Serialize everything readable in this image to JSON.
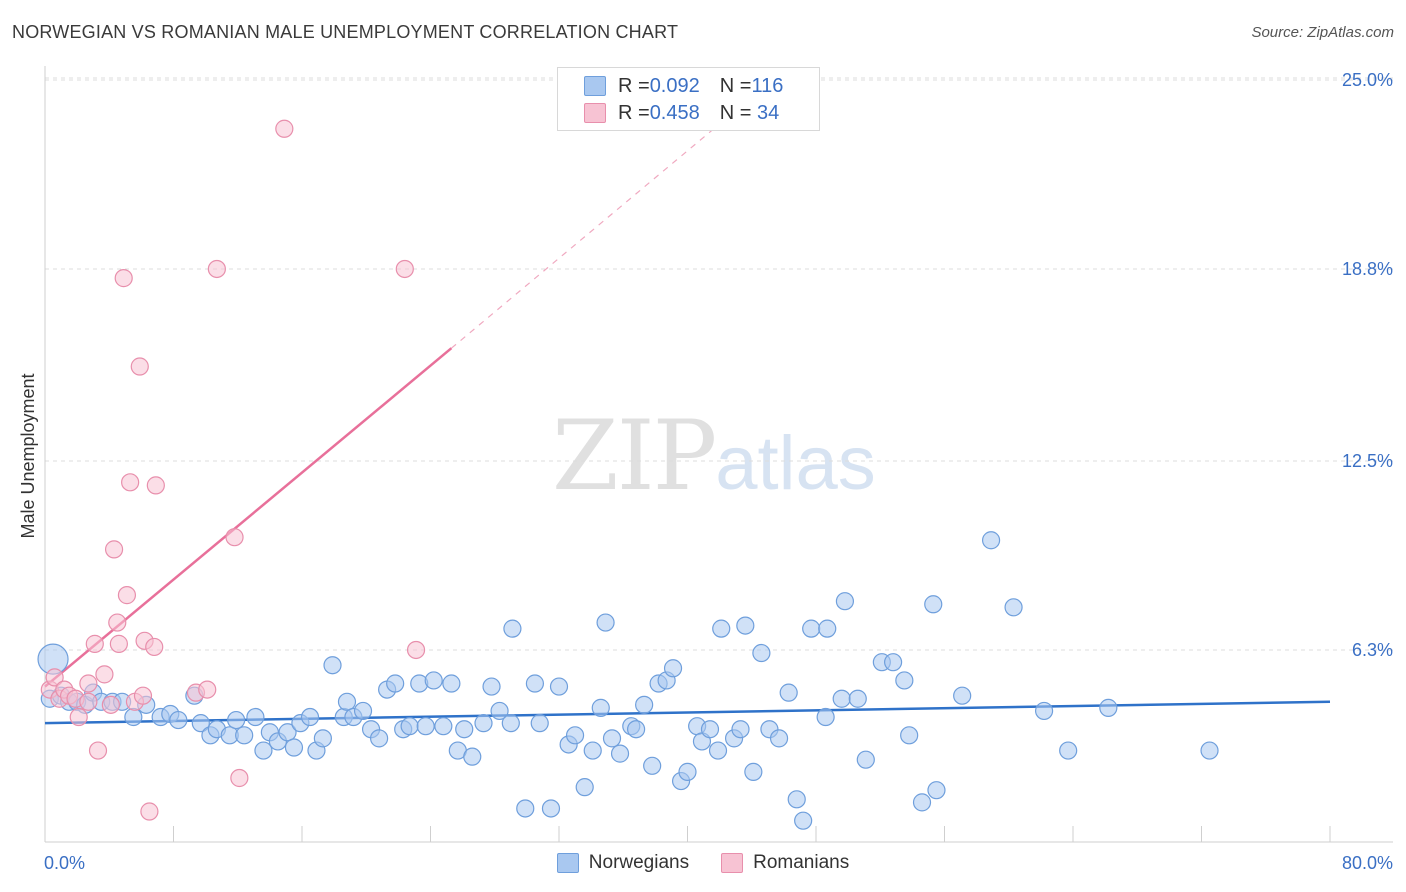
{
  "header": {
    "title": "NORWEGIAN VS ROMANIAN MALE UNEMPLOYMENT CORRELATION CHART",
    "source": "Source: ZipAtlas.com"
  },
  "watermark": {
    "zip": "ZIP",
    "atlas": "atlas"
  },
  "legend_top": [
    {
      "r_label": "R = ",
      "r_value": "0.092",
      "n_label": "N = ",
      "n_value": "116",
      "color": "#a9c8f0",
      "border": "#6f9fdc"
    },
    {
      "r_label": "R = ",
      "r_value": "0.458",
      "n_label": "N = ",
      "n_value": " 34",
      "color": "#f7c3d3",
      "border": "#e88fac"
    }
  ],
  "legend_bottom": [
    {
      "label": "Norwegians",
      "color": "#a9c8f0",
      "border": "#6f9fdc"
    },
    {
      "label": "Romanians",
      "color": "#f7c3d3",
      "border": "#e88fac"
    }
  ],
  "chart_data": {
    "type": "scatter",
    "ylabel": "Male Unemployment",
    "xlim": [
      0,
      80
    ],
    "ylim": [
      0,
      25
    ],
    "x_tick_labels": [
      "0.0%",
      "80.0%"
    ],
    "y_tick_labels": [
      "6.3%",
      "12.5%",
      "18.8%",
      "25.0%"
    ],
    "y_ticks": [
      6.3,
      12.5,
      18.8,
      25.0
    ],
    "grid": true,
    "series": [
      {
        "name": "Norwegians",
        "color": "#6f9fdc",
        "fill": "#a9c8f0",
        "trend": {
          "x0": 0,
          "y0": 3.9,
          "x1": 80,
          "y1": 4.6,
          "color": "#2f72c9"
        },
        "points": [
          [
            0.3,
            4.7
          ],
          [
            1,
            4.8
          ],
          [
            1.5,
            4.6
          ],
          [
            2,
            4.6
          ],
          [
            2.5,
            4.5
          ],
          [
            3,
            4.9
          ],
          [
            3.5,
            4.6
          ],
          [
            4.2,
            4.6
          ],
          [
            4.8,
            4.6
          ],
          [
            5.5,
            4.1
          ],
          [
            6.3,
            4.5
          ],
          [
            7.2,
            4.1
          ],
          [
            7.8,
            4.2
          ],
          [
            8.3,
            4.0
          ],
          [
            9.3,
            4.8
          ],
          [
            9.7,
            3.9
          ],
          [
            10.3,
            3.5
          ],
          [
            10.7,
            3.7
          ],
          [
            11.5,
            3.5
          ],
          [
            11.9,
            4.0
          ],
          [
            12.4,
            3.5
          ],
          [
            13.1,
            4.1
          ],
          [
            13.6,
            3.0
          ],
          [
            14,
            3.6
          ],
          [
            14.5,
            3.3
          ],
          [
            15.1,
            3.6
          ],
          [
            15.5,
            3.1
          ],
          [
            15.9,
            3.9
          ],
          [
            16.5,
            4.1
          ],
          [
            16.9,
            3.0
          ],
          [
            17.3,
            3.4
          ],
          [
            17.9,
            5.8
          ],
          [
            18.6,
            4.1
          ],
          [
            18.8,
            4.6
          ],
          [
            19.2,
            4.1
          ],
          [
            19.8,
            4.3
          ],
          [
            20.3,
            3.7
          ],
          [
            20.8,
            3.4
          ],
          [
            21.3,
            5.0
          ],
          [
            21.8,
            5.2
          ],
          [
            22.3,
            3.7
          ],
          [
            22.7,
            3.8
          ],
          [
            23.3,
            5.2
          ],
          [
            23.7,
            3.8
          ],
          [
            24.2,
            5.3
          ],
          [
            24.8,
            3.8
          ],
          [
            25.3,
            5.2
          ],
          [
            25.7,
            3.0
          ],
          [
            26.1,
            3.7
          ],
          [
            26.6,
            2.8
          ],
          [
            27.3,
            3.9
          ],
          [
            27.8,
            5.1
          ],
          [
            28.3,
            4.3
          ],
          [
            29,
            3.9
          ],
          [
            29.1,
            7.0
          ],
          [
            29.9,
            1.1
          ],
          [
            30.5,
            5.2
          ],
          [
            30.8,
            3.9
          ],
          [
            31.5,
            1.1
          ],
          [
            32,
            5.1
          ],
          [
            32.6,
            3.2
          ],
          [
            33,
            3.5
          ],
          [
            33.6,
            1.8
          ],
          [
            34.1,
            3.0
          ],
          [
            34.6,
            4.4
          ],
          [
            34.9,
            7.2
          ],
          [
            35.3,
            3.4
          ],
          [
            35.8,
            2.9
          ],
          [
            36.5,
            3.8
          ],
          [
            36.8,
            3.7
          ],
          [
            37.3,
            4.5
          ],
          [
            37.8,
            2.5
          ],
          [
            38.2,
            5.2
          ],
          [
            38.7,
            5.3
          ],
          [
            39.1,
            5.7
          ],
          [
            39.6,
            2.0
          ],
          [
            40,
            2.3
          ],
          [
            40.6,
            3.8
          ],
          [
            40.9,
            3.3
          ],
          [
            41.4,
            3.7
          ],
          [
            41.9,
            3.0
          ],
          [
            42.1,
            7.0
          ],
          [
            42.9,
            3.4
          ],
          [
            43.3,
            3.7
          ],
          [
            43.6,
            7.1
          ],
          [
            44.1,
            2.3
          ],
          [
            44.6,
            6.2
          ],
          [
            45.1,
            3.7
          ],
          [
            45.7,
            3.4
          ],
          [
            46.3,
            4.9
          ],
          [
            46.8,
            1.4
          ],
          [
            47.2,
            0.7
          ],
          [
            47.7,
            7.0
          ],
          [
            48.6,
            4.1
          ],
          [
            48.7,
            7.0
          ],
          [
            49.6,
            4.7
          ],
          [
            49.8,
            7.9
          ],
          [
            50.6,
            4.7
          ],
          [
            51.1,
            2.7
          ],
          [
            52.1,
            5.9
          ],
          [
            52.8,
            5.9
          ],
          [
            53.5,
            5.3
          ],
          [
            53.8,
            3.5
          ],
          [
            54.6,
            1.3
          ],
          [
            55.3,
            7.8
          ],
          [
            55.5,
            1.7
          ],
          [
            57.1,
            4.8
          ],
          [
            58.9,
            9.9
          ],
          [
            60.3,
            7.7
          ],
          [
            62.2,
            4.3
          ],
          [
            63.7,
            3.0
          ],
          [
            66.2,
            4.4
          ],
          [
            72.5,
            3.0
          ],
          [
            0.5,
            6.0
          ]
        ]
      },
      {
        "name": "Romanians",
        "color": "#e88fac",
        "fill": "#f7c3d3",
        "trend": {
          "x0": 0,
          "y0": 5.1,
          "x1": 25.3,
          "y1": 16.2,
          "x2": 43,
          "y2": 24.0,
          "color": "#e8709a"
        },
        "points": [
          [
            0.3,
            5.0
          ],
          [
            0.6,
            5.4
          ],
          [
            0.9,
            4.7
          ],
          [
            1.2,
            5.0
          ],
          [
            1.5,
            4.8
          ],
          [
            1.9,
            4.7
          ],
          [
            2.1,
            4.1
          ],
          [
            2.7,
            4.6
          ],
          [
            2.7,
            5.2
          ],
          [
            3.1,
            6.5
          ],
          [
            3.3,
            3.0
          ],
          [
            3.7,
            5.5
          ],
          [
            4.1,
            4.5
          ],
          [
            4.3,
            9.6
          ],
          [
            4.5,
            7.2
          ],
          [
            4.6,
            6.5
          ],
          [
            4.9,
            18.5
          ],
          [
            5.1,
            8.1
          ],
          [
            5.3,
            11.8
          ],
          [
            5.6,
            4.6
          ],
          [
            5.9,
            15.6
          ],
          [
            6.1,
            4.8
          ],
          [
            6.2,
            6.6
          ],
          [
            6.5,
            1.0
          ],
          [
            6.8,
            6.4
          ],
          [
            6.9,
            11.7
          ],
          [
            9.4,
            4.9
          ],
          [
            10.1,
            5.0
          ],
          [
            10.7,
            18.8
          ],
          [
            11.8,
            10.0
          ],
          [
            12.1,
            2.1
          ],
          [
            14.9,
            23.4
          ],
          [
            22.4,
            18.8
          ],
          [
            23.1,
            6.3
          ]
        ]
      }
    ]
  }
}
